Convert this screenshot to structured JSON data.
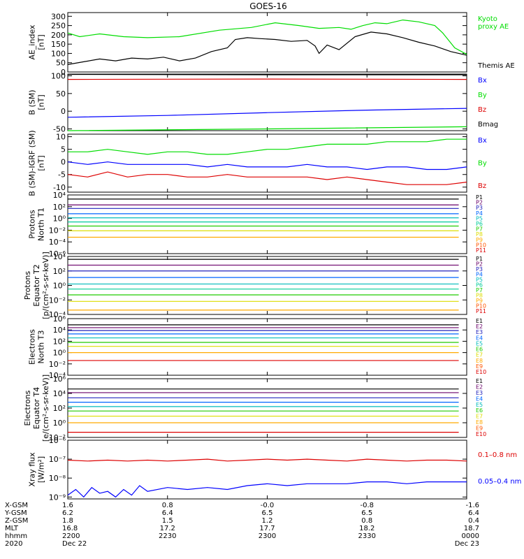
{
  "title": "GOES-16",
  "colors": {
    "black": "#000000",
    "green": "#00dd00",
    "blue": "#0000ff",
    "red": "#dd0000",
    "series_palette": [
      "#000000",
      "#6a006a",
      "#2222bb",
      "#0066ff",
      "#00bbbb",
      "#00cc99",
      "#22cc00",
      "#dddd00",
      "#ffaa00",
      "#ff5500",
      "#dd0000",
      "#aa0000"
    ]
  },
  "chart_data": [
    {
      "id": "ae",
      "type": "line",
      "ylabel": [
        "AE_index",
        "[nT]"
      ],
      "ylim": [
        0,
        320
      ],
      "yticks": [
        0,
        50,
        100,
        150,
        200,
        250,
        300
      ],
      "ytick_labels": [
        "0",
        "50",
        "100",
        "150",
        "200",
        "250",
        "300"
      ],
      "scale": "linear",
      "series": [
        {
          "name": "Kyoto proxy AE",
          "legend": [
            "Kyoto",
            "proxy AE"
          ],
          "color": "#00dd00",
          "x": [
            0,
            3,
            8,
            14,
            20,
            28,
            38,
            46,
            52,
            58,
            63,
            68,
            71,
            74,
            77,
            80,
            84,
            88,
            92,
            94,
            97,
            100
          ],
          "y": [
            210,
            190,
            205,
            190,
            185,
            190,
            225,
            240,
            265,
            250,
            235,
            240,
            230,
            250,
            265,
            260,
            280,
            270,
            250,
            210,
            130,
            95
          ]
        },
        {
          "name": "Themis AE",
          "legend": [
            "Themis AE"
          ],
          "color": "#000000",
          "x": [
            0,
            4,
            8,
            12,
            16,
            20,
            24,
            28,
            32,
            36,
            40,
            42,
            45,
            48,
            52,
            56,
            60,
            62,
            63,
            65,
            68,
            72,
            76,
            80,
            84,
            88,
            92,
            96,
            100
          ],
          "y": [
            40,
            55,
            70,
            60,
            75,
            70,
            80,
            60,
            75,
            110,
            130,
            175,
            185,
            180,
            175,
            165,
            170,
            140,
            100,
            145,
            120,
            190,
            215,
            205,
            185,
            160,
            140,
            110,
            90
          ]
        }
      ]
    },
    {
      "id": "bsm",
      "type": "line",
      "ylabel": [
        "B (SM)",
        "[nT]"
      ],
      "ylim": [
        -55,
        105
      ],
      "yticks": [
        -50,
        0,
        50,
        100
      ],
      "ytick_labels": [
        "-50",
        "0",
        "50",
        "100"
      ],
      "scale": "linear",
      "series": [
        {
          "name": "Bx",
          "legend": [
            "Bx"
          ],
          "color": "#0000ff",
          "x": [
            0,
            25,
            50,
            75,
            100
          ],
          "y": [
            -17,
            -12,
            -4,
            3,
            8
          ]
        },
        {
          "name": "By",
          "legend": [
            "By"
          ],
          "color": "#00dd00",
          "x": [
            0,
            50,
            100
          ],
          "y": [
            -55,
            -50,
            -44
          ]
        },
        {
          "name": "Bz",
          "legend": [
            "Bz"
          ],
          "color": "#dd0000",
          "x": [
            0,
            50,
            100
          ],
          "y": [
            90,
            91,
            90
          ]
        },
        {
          "name": "Bmag",
          "legend": [
            "Bmag"
          ],
          "color": "#000000",
          "x": [
            0,
            50,
            100
          ],
          "y": [
            104,
            103,
            103
          ]
        }
      ]
    },
    {
      "id": "bigrf",
      "type": "line",
      "ylabel": [
        "B (SM)-IGRF (SM)",
        "[nT]"
      ],
      "ylim": [
        -12,
        11
      ],
      "yticks": [
        -10,
        -5,
        0,
        5,
        10
      ],
      "ytick_labels": [
        "-10",
        "-5",
        "0",
        "5",
        "10"
      ],
      "scale": "linear",
      "series": [
        {
          "name": "Bx",
          "legend": [
            "Bx"
          ],
          "color": "#0000ff",
          "x": [
            0,
            5,
            10,
            15,
            20,
            25,
            30,
            35,
            40,
            45,
            50,
            55,
            60,
            65,
            70,
            75,
            80,
            85,
            90,
            95,
            100
          ],
          "y": [
            0,
            -1,
            0,
            -1,
            -1,
            -1,
            -1,
            -2,
            -1,
            -2,
            -2,
            -2,
            -1,
            -2,
            -2,
            -3,
            -2,
            -2,
            -3,
            -3,
            -2
          ]
        },
        {
          "name": "By",
          "legend": [
            "By"
          ],
          "color": "#00dd00",
          "x": [
            0,
            5,
            10,
            15,
            20,
            25,
            30,
            35,
            40,
            45,
            50,
            55,
            60,
            65,
            70,
            75,
            80,
            85,
            90,
            95,
            100
          ],
          "y": [
            4,
            4,
            5,
            4,
            3,
            4,
            4,
            3,
            3,
            4,
            5,
            5,
            6,
            7,
            7,
            7,
            8,
            8,
            8,
            9,
            9
          ]
        },
        {
          "name": "Bz",
          "legend": [
            "Bz"
          ],
          "color": "#dd0000",
          "x": [
            0,
            5,
            10,
            15,
            20,
            25,
            30,
            35,
            40,
            45,
            50,
            55,
            60,
            65,
            70,
            75,
            80,
            85,
            90,
            95,
            100
          ],
          "y": [
            -5,
            -6,
            -4,
            -6,
            -5,
            -5,
            -6,
            -6,
            -5,
            -6,
            -6,
            -6,
            -6,
            -7,
            -6,
            -7,
            -8,
            -9,
            -9,
            -9,
            -8
          ]
        }
      ]
    },
    {
      "id": "p_north",
      "type": "line",
      "ylabel": [
        "Protons",
        "North T1"
      ],
      "ylim": [
        -6,
        4
      ],
      "yticks": [
        -6,
        -4,
        -2,
        0,
        2,
        4
      ],
      "ytick_labels": [
        "10⁻⁶",
        "10⁻⁴",
        "10⁻²",
        "10⁰",
        "10²",
        "10⁴"
      ],
      "scale": "log10",
      "series": [
        {
          "name": "P1",
          "legend": [
            "P1"
          ],
          "color": "#000000",
          "levels": [
            3.3
          ]
        },
        {
          "name": "P2",
          "legend": [
            "P2"
          ],
          "color": "#6a006a",
          "levels": [
            2.3
          ]
        },
        {
          "name": "P3",
          "legend": [
            "P3"
          ],
          "color": "#2222bb",
          "levels": [
            1.7
          ]
        },
        {
          "name": "P4",
          "legend": [
            "P4"
          ],
          "color": "#0066ff",
          "levels": [
            0.8
          ]
        },
        {
          "name": "P5",
          "legend": [
            "P5"
          ],
          "color": "#00bbbb",
          "levels": [
            0.1
          ]
        },
        {
          "name": "P6",
          "legend": [
            "P6"
          ],
          "color": "#00cc99",
          "levels": [
            -0.6
          ]
        },
        {
          "name": "P7",
          "legend": [
            "P7"
          ],
          "color": "#22cc00",
          "levels": [
            -1.3
          ]
        },
        {
          "name": "P8",
          "legend": [
            "P8"
          ],
          "color": "#dddd00",
          "levels": [
            -2.1
          ]
        },
        {
          "name": "P9",
          "legend": [
            "P9"
          ],
          "color": "#ffaa00",
          "levels": [
            -3.2
          ]
        },
        {
          "name": "P10",
          "legend": [
            "P10"
          ],
          "color": "#ff5500",
          "levels": []
        },
        {
          "name": "P11",
          "legend": [
            "P11"
          ],
          "color": "#dd0000",
          "levels": []
        }
      ]
    },
    {
      "id": "p_equator",
      "type": "line",
      "ylabel": [
        "Protons",
        "Equator T2",
        "[p/(cm²-s-sr-keV)]"
      ],
      "ylim": [
        -4,
        4
      ],
      "yticks": [
        -4,
        -2,
        0,
        2,
        4
      ],
      "ytick_labels": [
        "10⁻⁴",
        "10⁻²",
        "10⁰",
        "10²",
        "10⁴"
      ],
      "scale": "log10",
      "series": [
        {
          "name": "P1",
          "legend": [
            "P1"
          ],
          "color": "#000000",
          "levels": [
            3.6
          ]
        },
        {
          "name": "P2",
          "legend": [
            "P2"
          ],
          "color": "#6a006a",
          "levels": [
            2.8
          ]
        },
        {
          "name": "P3",
          "legend": [
            "P3"
          ],
          "color": "#2222bb",
          "levels": [
            2.0
          ]
        },
        {
          "name": "P4",
          "legend": [
            "P4"
          ],
          "color": "#0066ff",
          "levels": [
            1.1
          ]
        },
        {
          "name": "P5",
          "legend": [
            "P5"
          ],
          "color": "#00bbbb",
          "levels": [
            0.2
          ]
        },
        {
          "name": "P6",
          "legend": [
            "P6"
          ],
          "color": "#00cc99",
          "levels": [
            -0.5
          ]
        },
        {
          "name": "P7",
          "legend": [
            "P7"
          ],
          "color": "#22cc00",
          "levels": [
            -1.3
          ]
        },
        {
          "name": "P8",
          "legend": [
            "P8"
          ],
          "color": "#dddd00",
          "levels": [
            -2.2
          ]
        },
        {
          "name": "P9",
          "legend": [
            "P9"
          ],
          "color": "#ffaa00",
          "levels": [
            -3.4
          ]
        },
        {
          "name": "P10",
          "legend": [
            "P10"
          ],
          "color": "#ff5500",
          "levels": []
        },
        {
          "name": "P11",
          "legend": [
            "P11"
          ],
          "color": "#dd0000",
          "levels": []
        }
      ]
    },
    {
      "id": "e_north",
      "type": "line",
      "ylabel": [
        "Electrons",
        "North T3"
      ],
      "ylim": [
        -4,
        6
      ],
      "yticks": [
        -4,
        -2,
        0,
        2,
        4,
        6
      ],
      "ytick_labels": [
        "10⁻⁴",
        "10⁻²",
        "10⁰",
        "10²",
        "10⁴",
        "10⁶"
      ],
      "scale": "log10",
      "series": [
        {
          "name": "E1",
          "legend": [
            "E1"
          ],
          "color": "#000000",
          "levels": [
            4.9
          ]
        },
        {
          "name": "E2",
          "legend": [
            "E2"
          ],
          "color": "#6a006a",
          "levels": [
            4.4
          ]
        },
        {
          "name": "E3",
          "legend": [
            "E3"
          ],
          "color": "#2222bb",
          "levels": [
            3.9
          ]
        },
        {
          "name": "E4",
          "legend": [
            "E4"
          ],
          "color": "#0066ff",
          "levels": [
            3.3
          ]
        },
        {
          "name": "E5",
          "legend": [
            "E5"
          ],
          "color": "#00bbbb",
          "levels": [
            2.6
          ]
        },
        {
          "name": "E6",
          "legend": [
            "E6"
          ],
          "color": "#22cc00",
          "levels": [
            1.8
          ]
        },
        {
          "name": "E7",
          "legend": [
            "E7"
          ],
          "color": "#dddd00",
          "levels": [
            1.1
          ]
        },
        {
          "name": "E8",
          "legend": [
            "E8"
          ],
          "color": "#ffaa00",
          "levels": [
            0.0
          ]
        },
        {
          "name": "E9",
          "legend": [
            "E9"
          ],
          "color": "#ff5500",
          "levels": []
        },
        {
          "name": "E10",
          "legend": [
            "E10"
          ],
          "color": "#dd0000",
          "levels": [
            -1.4
          ]
        }
      ]
    },
    {
      "id": "e_equator",
      "type": "line",
      "ylabel": [
        "Electrons",
        "Equator T4",
        "[e/(cm²-s-sr-keV)]"
      ],
      "ylim": [
        -2,
        6
      ],
      "yticks": [
        -2,
        0,
        2,
        4,
        6
      ],
      "ytick_labels": [
        "10⁻²",
        "10⁰",
        "10²",
        "10⁴",
        "10⁶"
      ],
      "scale": "log10",
      "series": [
        {
          "name": "E1",
          "legend": [
            "E1"
          ],
          "color": "#000000",
          "levels": [
            4.6
          ]
        },
        {
          "name": "E2",
          "legend": [
            "E2"
          ],
          "color": "#6a006a",
          "levels": [
            4.1
          ]
        },
        {
          "name": "E3",
          "legend": [
            "E3"
          ],
          "color": "#2222bb",
          "levels": [
            3.4
          ]
        },
        {
          "name": "E4",
          "legend": [
            "E4"
          ],
          "color": "#0066ff",
          "levels": [
            2.8
          ]
        },
        {
          "name": "E5",
          "legend": [
            "E5"
          ],
          "color": "#00bbbb",
          "levels": [
            2.2
          ]
        },
        {
          "name": "E6",
          "legend": [
            "E6"
          ],
          "color": "#22cc00",
          "levels": [
            1.6
          ]
        },
        {
          "name": "E7",
          "legend": [
            "E7"
          ],
          "color": "#dddd00",
          "levels": [
            0.9
          ]
        },
        {
          "name": "E8",
          "legend": [
            "E8"
          ],
          "color": "#ffaa00",
          "levels": [
            0.0
          ]
        },
        {
          "name": "E9",
          "legend": [
            "E9"
          ],
          "color": "#ff5500",
          "levels": []
        },
        {
          "name": "E10",
          "legend": [
            "E10"
          ],
          "color": "#dd0000",
          "levels": [
            -1.3
          ]
        }
      ]
    },
    {
      "id": "xray",
      "type": "line",
      "ylabel": [
        "Xray flux",
        "[W/m²]"
      ],
      "ylim": [
        -9.1,
        -6
      ],
      "yticks": [
        -9,
        -8,
        -7,
        -6
      ],
      "ytick_labels": [
        "10⁻⁹",
        "10⁻⁸",
        "10⁻⁷",
        "10⁻⁶"
      ],
      "scale": "log10",
      "series": [
        {
          "name": "0.1-0.8 nm",
          "legend": [
            "0.1–0.8 nm"
          ],
          "color": "#dd0000",
          "x": [
            0,
            5,
            10,
            15,
            20,
            25,
            30,
            35,
            40,
            45,
            50,
            55,
            60,
            65,
            70,
            75,
            80,
            85,
            90,
            95,
            100
          ],
          "y": [
            -7.05,
            -7.1,
            -7.05,
            -7.1,
            -7.05,
            -7.1,
            -7.05,
            -7.0,
            -7.1,
            -7.05,
            -7.0,
            -7.05,
            -7.0,
            -7.05,
            -7.1,
            -7.0,
            -7.05,
            -7.1,
            -7.05,
            -7.05,
            -7.1
          ]
        },
        {
          "name": "0.05-0.4 nm",
          "legend": [
            "0.05–0.4 nm"
          ],
          "color": "#0000ff",
          "x": [
            0,
            2,
            4,
            6,
            8,
            10,
            12,
            14,
            16,
            18,
            20,
            25,
            30,
            35,
            40,
            45,
            50,
            55,
            60,
            65,
            70,
            75,
            80,
            85,
            90,
            95,
            100
          ],
          "y": [
            -8.9,
            -8.6,
            -9.0,
            -8.5,
            -8.8,
            -8.7,
            -9.0,
            -8.6,
            -8.9,
            -8.4,
            -8.7,
            -8.5,
            -8.6,
            -8.5,
            -8.6,
            -8.4,
            -8.3,
            -8.4,
            -8.3,
            -8.3,
            -8.3,
            -8.2,
            -8.2,
            -8.3,
            -8.2,
            -8.2,
            -8.2
          ]
        }
      ]
    }
  ],
  "x_axis": {
    "row_labels": [
      "X-GSM",
      "Y-GSM",
      "Z-GSM",
      "MLT",
      "hhmm",
      "2020"
    ],
    "columns": [
      {
        "values": [
          "1.6",
          "6.2",
          "1.8",
          "16.8",
          "2200",
          "Dec 22"
        ]
      },
      {
        "values": [
          "0.8",
          "6.4",
          "1.5",
          "17.2",
          "2230",
          ""
        ]
      },
      {
        "values": [
          "-0.0",
          "6.5",
          "1.2",
          "17.7",
          "2300",
          ""
        ]
      },
      {
        "values": [
          "-0.8",
          "6.5",
          "0.8",
          "18.2",
          "2330",
          ""
        ]
      },
      {
        "values": [
          "-1.6",
          "6.4",
          "0.4",
          "18.7",
          "0000",
          "Dec 23"
        ]
      }
    ]
  }
}
